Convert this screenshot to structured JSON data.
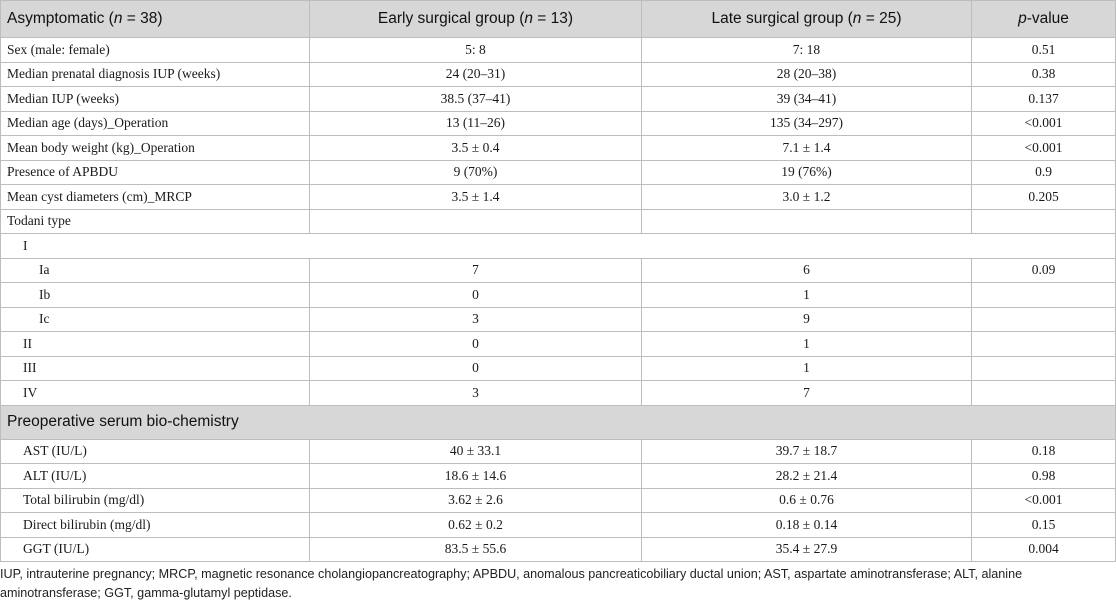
{
  "header": {
    "col0_prefix": "Asymptomatic (",
    "col0_n": "n",
    "col0_suffix": " = 38)",
    "col1_prefix": "Early surgical group (",
    "col1_n": "n",
    "col1_suffix": " = 13)",
    "col2_prefix": "Late surgical group (",
    "col2_n": "n",
    "col2_suffix": " = 25)",
    "col3_p": "p",
    "col3_suffix": "-value"
  },
  "rows": [
    {
      "label": "Sex (male: female)",
      "early": "5: 8",
      "late": "7: 18",
      "p": "0.51"
    },
    {
      "label": "Median prenatal diagnosis IUP (weeks)",
      "early": "24 (20–31)",
      "late": "28 (20–38)",
      "p": "0.38"
    },
    {
      "label": "Median IUP (weeks)",
      "early": "38.5 (37–41)",
      "late": "39 (34–41)",
      "p": "0.137"
    },
    {
      "label": "Median age (days)_Operation",
      "early": "13 (11–26)",
      "late": "135 (34–297)",
      "p": "<0.001"
    },
    {
      "label": "Mean body weight (kg)_Operation",
      "early": "3.5 ± 0.4",
      "late": "7.1 ± 1.4",
      "p": "<0.001"
    },
    {
      "label": "Presence of APBDU",
      "early": "9 (70%)",
      "late": "19 (76%)",
      "p": "0.9"
    },
    {
      "label": "Mean cyst diameters (cm)_MRCP",
      "early": "3.5 ± 1.4",
      "late": "3.0 ± 1.2",
      "p": "0.205"
    },
    {
      "label": "Todani type",
      "early": "",
      "late": "",
      "p": ""
    }
  ],
  "todani": {
    "I": "I",
    "Ia": {
      "label": "Ia",
      "early": "7",
      "late": "6",
      "p": "0.09"
    },
    "Ib": {
      "label": "Ib",
      "early": "0",
      "late": "1",
      "p": ""
    },
    "Ic": {
      "label": "Ic",
      "early": "3",
      "late": "9",
      "p": ""
    },
    "II": {
      "label": "II",
      "early": "0",
      "late": "1",
      "p": ""
    },
    "III": {
      "label": "III",
      "early": "0",
      "late": "1",
      "p": ""
    },
    "IV": {
      "label": "IV",
      "early": "3",
      "late": "7",
      "p": ""
    }
  },
  "section": {
    "title": "Preoperative serum bio-chemistry"
  },
  "biochem": [
    {
      "label": "AST (IU/L)",
      "early": "40 ± 33.1",
      "late": "39.7 ± 18.7",
      "p": "0.18"
    },
    {
      "label": "ALT (IU/L)",
      "early": "18.6 ± 14.6",
      "late": "28.2 ± 21.4",
      "p": "0.98"
    },
    {
      "label": "Total bilirubin (mg/dl)",
      "early": "3.62 ± 2.6",
      "late": "0.6 ± 0.76",
      "p": "<0.001"
    },
    {
      "label": "Direct bilirubin (mg/dl)",
      "early": "0.62 ± 0.2",
      "late": "0.18 ± 0.14",
      "p": "0.15"
    },
    {
      "label": "GGT (IU/L)",
      "early": "83.5 ± 55.6",
      "late": "35.4 ± 27.9",
      "p": "0.004"
    }
  ],
  "footnote": "IUP, intrauterine pregnancy; MRCP, magnetic resonance cholangiopancreatography; APBDU, anomalous pancreaticobiliary ductal union; AST, aspartate aminotransferase; ALT, alanine aminotransferase; GGT, gamma-glutamyl peptidase."
}
